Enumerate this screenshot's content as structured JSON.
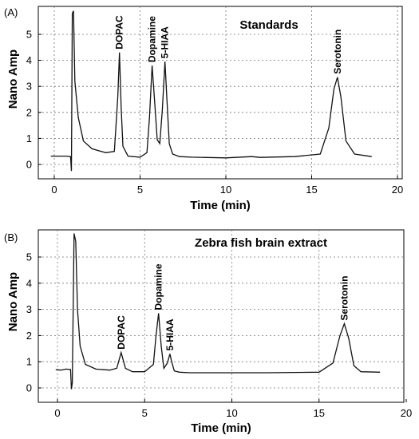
{
  "chart_data": [
    {
      "type": "line",
      "panel_label": "(A)",
      "title": "Standards",
      "xlabel": "Time (min)",
      "ylabel": "Nano Amp",
      "xlim": [
        -1.5,
        20
      ],
      "ylim": [
        -0.3,
        5.9
      ],
      "xticks": [
        "0",
        "5",
        "10",
        "15",
        "20"
      ],
      "yticks": [
        "0",
        "1",
        "2",
        "3",
        "4",
        "5"
      ],
      "grid": true,
      "baseline": 0.3,
      "series": [
        {
          "x": [
            -0.2,
            0.7,
            0.95,
            1.0,
            1.05,
            1.12,
            1.2,
            1.4,
            1.7,
            2.2,
            3.0,
            3.5,
            3.7,
            3.8,
            3.9,
            4.0,
            4.3,
            5.0,
            5.4,
            5.55,
            5.7,
            5.85,
            6.0,
            6.15,
            6.3,
            6.45,
            6.55,
            6.7,
            6.9,
            7.3,
            8.0,
            10.0,
            11.5,
            12.0,
            14.0,
            15.5,
            16.0,
            16.3,
            16.5,
            16.7,
            17.0,
            17.5,
            18.5
          ],
          "y": [
            0.32,
            0.32,
            0.3,
            -0.25,
            5.8,
            5.9,
            3.2,
            1.8,
            0.9,
            0.6,
            0.45,
            0.5,
            2.6,
            4.3,
            2.2,
            0.7,
            0.32,
            0.28,
            0.45,
            1.8,
            3.8,
            2.4,
            0.95,
            0.8,
            2.1,
            3.95,
            2.7,
            0.8,
            0.4,
            0.3,
            0.28,
            0.25,
            0.3,
            0.27,
            0.3,
            0.4,
            1.4,
            2.9,
            3.35,
            2.6,
            0.9,
            0.4,
            0.3
          ]
        }
      ],
      "peaks": [
        {
          "name": "DOPAC",
          "x": 3.8,
          "y": 4.3
        },
        {
          "name": "Dopamine",
          "x": 5.7,
          "y": 3.8
        },
        {
          "name": "5-HIAA",
          "x": 6.45,
          "y": 3.95
        },
        {
          "name": "Serotonin",
          "x": 16.5,
          "y": 3.35
        }
      ]
    },
    {
      "type": "line",
      "panel_label": "(B)",
      "title": "Zebra fish brain extract",
      "xlabel": "Time (min)",
      "ylabel": "Nano Amp",
      "xlim": [
        -1.5,
        20
      ],
      "ylim": [
        -0.3,
        5.9
      ],
      "xticks": [
        "0",
        "5",
        "10",
        "15",
        "20"
      ],
      "yticks": [
        "0",
        "1",
        "2",
        "3",
        "4",
        "5"
      ],
      "grid": true,
      "baseline": 0.6,
      "series": [
        {
          "x": [
            -0.1,
            0.2,
            0.5,
            0.75,
            0.8,
            0.85,
            0.95,
            1.05,
            1.15,
            1.3,
            1.6,
            2.2,
            3.0,
            3.4,
            3.65,
            3.9,
            4.3,
            5.0,
            5.5,
            5.65,
            5.8,
            5.95,
            6.1,
            6.3,
            6.45,
            6.55,
            6.7,
            7.0,
            7.6,
            9.0,
            12.0,
            15.0,
            15.8,
            16.2,
            16.45,
            16.7,
            17.0,
            17.4,
            18.5
          ],
          "y": [
            0.7,
            0.68,
            0.72,
            0.7,
            -0.05,
            0.2,
            5.9,
            5.6,
            3.0,
            1.6,
            0.9,
            0.72,
            0.68,
            0.75,
            1.35,
            0.75,
            0.62,
            0.62,
            0.9,
            2.0,
            2.85,
            1.6,
            0.75,
            0.95,
            1.3,
            1.0,
            0.65,
            0.6,
            0.58,
            0.58,
            0.58,
            0.6,
            0.95,
            2.0,
            2.45,
            1.9,
            0.85,
            0.62,
            0.6
          ]
        }
      ],
      "peaks": [
        {
          "name": "DOPAC",
          "x": 3.65,
          "y": 1.35
        },
        {
          "name": "Dopamine",
          "x": 5.8,
          "y": 2.85
        },
        {
          "name": "5-HIAA",
          "x": 6.45,
          "y": 1.3
        },
        {
          "name": "Serotonin",
          "x": 16.45,
          "y": 2.45
        }
      ]
    }
  ]
}
